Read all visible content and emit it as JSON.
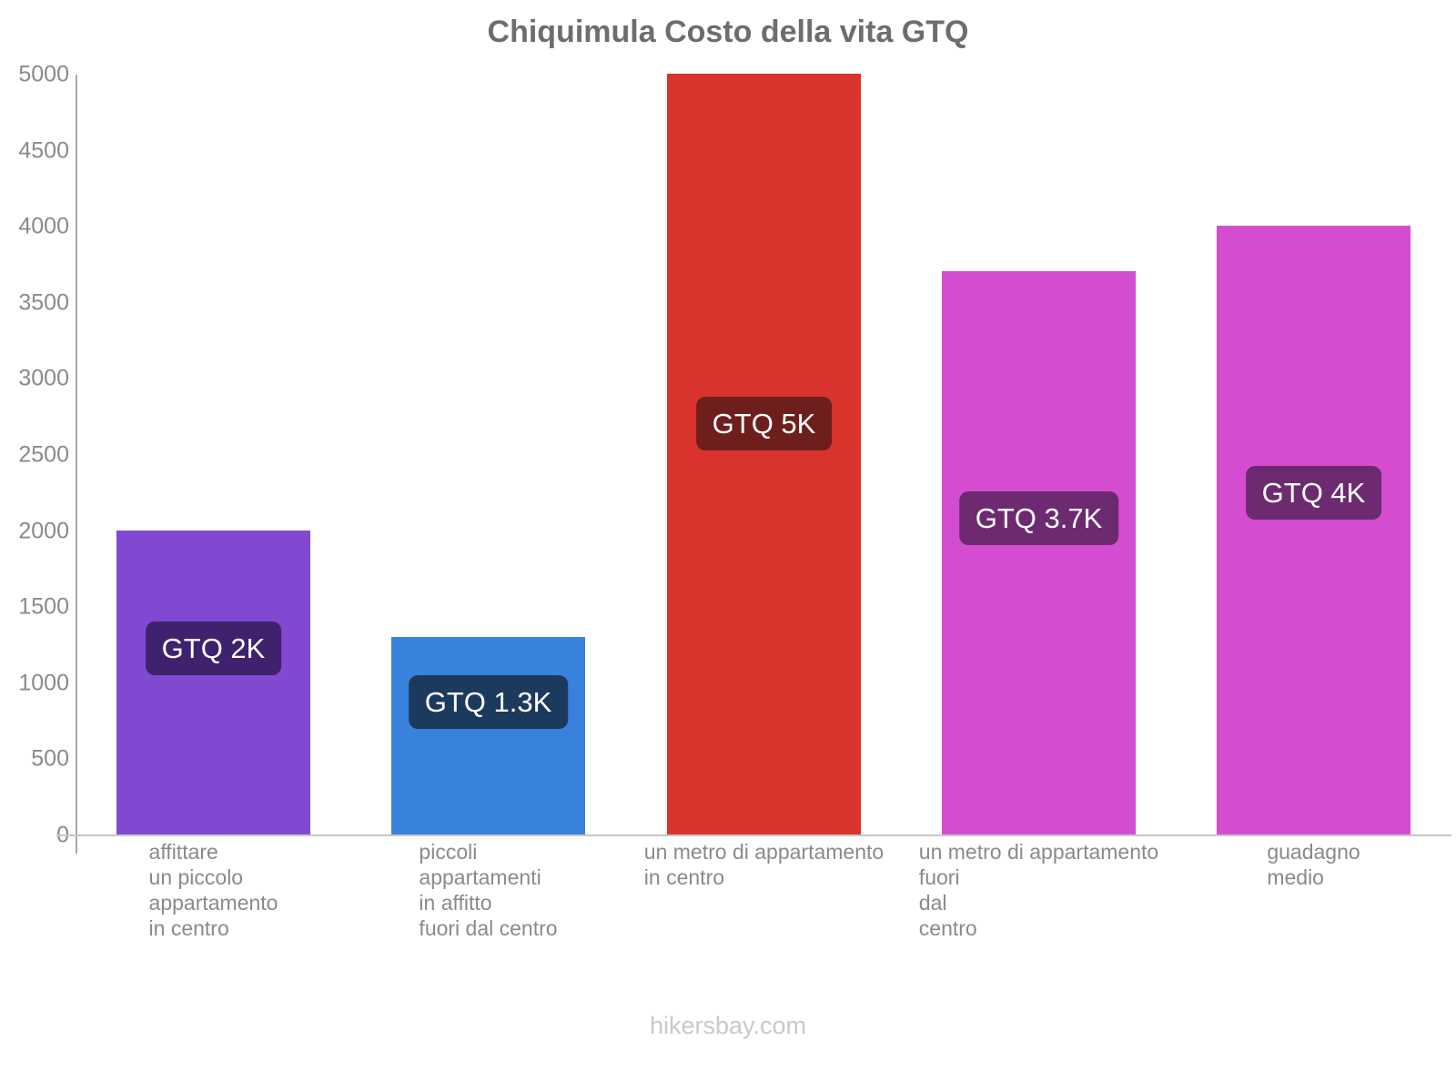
{
  "chart_data": {
    "type": "bar",
    "title": "Chiquimula Costo della vita GTQ",
    "categories": [
      "affittare un piccolo appartamento in centro",
      "piccoli appartamenti in affitto fuori dal centro",
      "un metro di appartamento in centro",
      "un metro di appartamento fuori dal centro",
      "guadagno medio"
    ],
    "category_lines": [
      [
        "affittare",
        "un piccolo",
        "appartamento",
        "in centro"
      ],
      [
        "piccoli",
        "appartamenti",
        "in affitto",
        "fuori dal centro"
      ],
      [
        "un metro di appartamento",
        "in centro"
      ],
      [
        "un metro di appartamento",
        "fuori",
        "dal",
        "centro"
      ],
      [
        "guadagno",
        "medio"
      ]
    ],
    "values": [
      2000,
      1300,
      5000,
      3700,
      4000
    ],
    "value_labels": [
      "GTQ 2K",
      "GTQ 1.3K",
      "GTQ 5K",
      "GTQ 3.7K",
      "GTQ 4K"
    ],
    "bar_colors": [
      "#8148d2",
      "#3881dc",
      "#d9332d",
      "#d44dd0",
      "#d44dd0"
    ],
    "label_bg_colors": [
      "#3e226e",
      "#1c3a5e",
      "#6e1e1c",
      "#6d2a71",
      "#6d2a71"
    ],
    "currency": "GTQ",
    "ylim": [
      0,
      5000
    ],
    "yticks": [
      0,
      500,
      1000,
      1500,
      2000,
      2500,
      3000,
      3500,
      4000,
      4500,
      5000
    ],
    "grid": false,
    "legend": false,
    "axis_color": "#a9a9a9",
    "tick_label_color": "#8a8a8a"
  },
  "footer": {
    "text": "hikersbay.com"
  }
}
